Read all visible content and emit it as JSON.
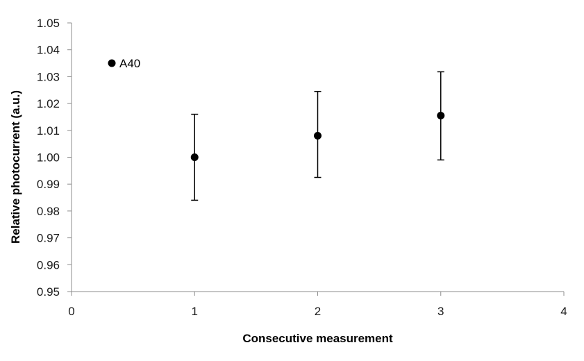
{
  "chart_data": {
    "type": "scatter",
    "title": "",
    "xlabel": "Consecutive measurement",
    "ylabel": "Relative photocurrent (a.u.)",
    "xlim": [
      0,
      4
    ],
    "ylim": [
      0.95,
      1.05
    ],
    "x_ticks": [
      0,
      1,
      2,
      3,
      4
    ],
    "y_ticks": [
      0.95,
      0.96,
      0.97,
      0.98,
      0.99,
      1.0,
      1.01,
      1.02,
      1.03,
      1.04,
      1.05
    ],
    "x_tick_labels": [
      "0",
      "1",
      "2",
      "3",
      "4"
    ],
    "y_tick_labels": [
      "0.95",
      "0.96",
      "0.97",
      "0.98",
      "0.99",
      "1.00",
      "1.01",
      "1.02",
      "1.03",
      "1.04",
      "1.05"
    ],
    "grid": false,
    "legend": {
      "position": "top-left",
      "entries": [
        "A40"
      ]
    },
    "series": [
      {
        "name": "A40",
        "color": "#000000",
        "marker": "circle",
        "x": [
          1,
          2,
          3
        ],
        "y": [
          1.0,
          1.008,
          1.0155
        ],
        "error_low": [
          0.984,
          0.9925,
          0.999
        ],
        "error_high": [
          1.016,
          1.0245,
          1.0318
        ]
      }
    ]
  }
}
